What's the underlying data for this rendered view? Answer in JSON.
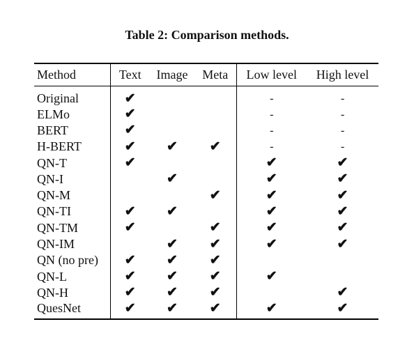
{
  "caption": "Table 2: Comparison methods.",
  "columns": [
    "Method",
    "Text",
    "Image",
    "Meta",
    "Low level",
    "High level"
  ],
  "rows": [
    {
      "method": "Original",
      "cells": [
        "✔",
        "",
        "",
        "-",
        "-"
      ]
    },
    {
      "method": "ELMo",
      "cells": [
        "✔",
        "",
        "",
        "-",
        "-"
      ]
    },
    {
      "method": "BERT",
      "cells": [
        "✔",
        "",
        "",
        "-",
        "-"
      ]
    },
    {
      "method": "H-BERT",
      "cells": [
        "✔",
        "✔",
        "✔",
        "-",
        "-"
      ]
    },
    {
      "method": "QN-T",
      "cells": [
        "✔",
        "",
        "",
        "✔",
        "✔"
      ]
    },
    {
      "method": "QN-I",
      "cells": [
        "",
        "✔",
        "",
        "✔",
        "✔"
      ]
    },
    {
      "method": "QN-M",
      "cells": [
        "",
        "",
        "✔",
        "✔",
        "✔"
      ]
    },
    {
      "method": "QN-TI",
      "cells": [
        "✔",
        "✔",
        "",
        "✔",
        "✔"
      ]
    },
    {
      "method": "QN-TM",
      "cells": [
        "✔",
        "",
        "✔",
        "✔",
        "✔"
      ]
    },
    {
      "method": "QN-IM",
      "cells": [
        "",
        "✔",
        "✔",
        "✔",
        "✔"
      ]
    },
    {
      "method": "QN (no pre)",
      "cells": [
        "✔",
        "✔",
        "✔",
        "",
        ""
      ]
    },
    {
      "method": "QN-L",
      "cells": [
        "✔",
        "✔",
        "✔",
        "✔",
        ""
      ]
    },
    {
      "method": "QN-H",
      "cells": [
        "✔",
        "✔",
        "✔",
        "",
        "✔"
      ]
    },
    {
      "method": "QuesNet",
      "cells": [
        "✔",
        "✔",
        "✔",
        "✔",
        "✔"
      ]
    }
  ]
}
